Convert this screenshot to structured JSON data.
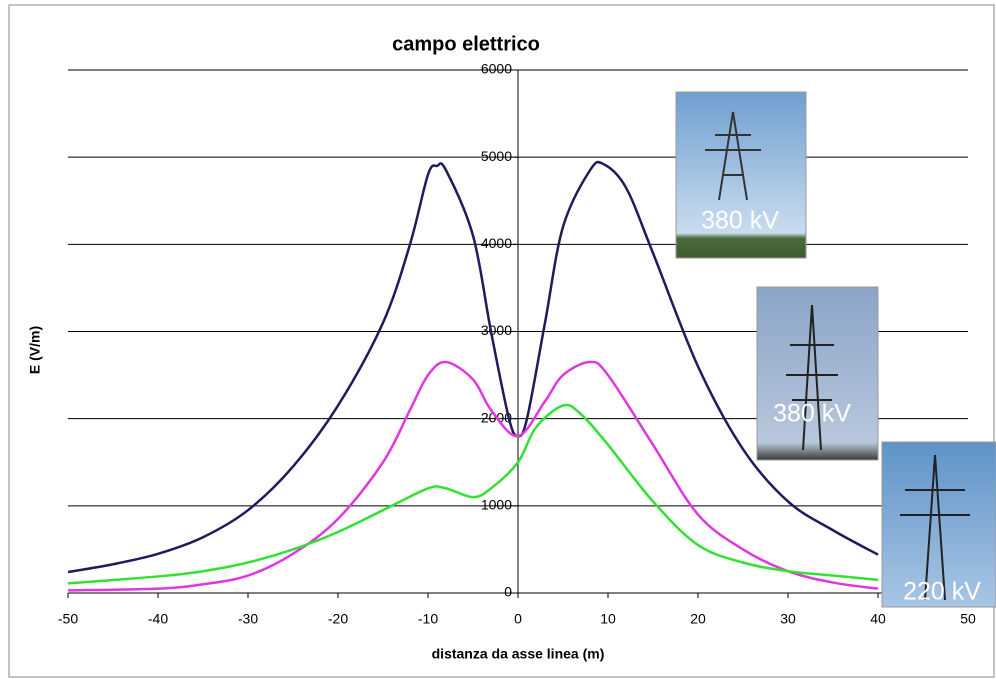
{
  "chart_data": {
    "type": "line",
    "title": "campo elettrico",
    "x_label": "distanza da asse linea (m)",
    "y_label": "E (V/m)",
    "xlim": [
      -50,
      50
    ],
    "xticks": [
      -50,
      -40,
      -30,
      -20,
      -10,
      0,
      10,
      20,
      30,
      40,
      50
    ],
    "ylim": [
      0,
      6000
    ],
    "yticks": [
      0,
      1000,
      2000,
      3000,
      4000,
      5000,
      6000
    ],
    "grid": true,
    "series": [
      {
        "color": "#1c1c5e",
        "x": [
          -50,
          -45,
          -40,
          -35,
          -30,
          -25,
          -20,
          -15,
          -12,
          -10,
          -9,
          -8,
          -5,
          -3,
          -1,
          0,
          1,
          3,
          5,
          8,
          9.5,
          12,
          15,
          20,
          25,
          30,
          35,
          40
        ],
        "values": [
          240,
          330,
          450,
          640,
          950,
          1450,
          2150,
          3100,
          4000,
          4800,
          4900,
          4850,
          4100,
          3000,
          2000,
          1800,
          2000,
          3100,
          4200,
          4850,
          4920,
          4650,
          3900,
          2600,
          1650,
          1050,
          720,
          440
        ]
      },
      {
        "color": "#e038e0",
        "x": [
          -50,
          -40,
          -35,
          -30,
          -25,
          -20,
          -15,
          -12,
          -10,
          -8,
          -5,
          -3,
          0,
          3,
          5,
          8,
          10,
          15,
          20,
          25,
          30,
          35,
          40
        ],
        "values": [
          30,
          50,
          100,
          200,
          450,
          850,
          1500,
          2100,
          2500,
          2650,
          2450,
          2100,
          1800,
          2200,
          2500,
          2650,
          2500,
          1700,
          900,
          500,
          250,
          120,
          50
        ]
      },
      {
        "color": "#33e033",
        "x": [
          -50,
          -40,
          -35,
          -30,
          -25,
          -20,
          -15,
          -10,
          -8,
          -5,
          -3,
          0,
          2,
          5,
          7,
          10,
          15,
          20,
          25,
          30,
          35,
          40
        ],
        "values": [
          110,
          190,
          250,
          350,
          500,
          700,
          950,
          1200,
          1200,
          1100,
          1200,
          1500,
          1900,
          2150,
          2050,
          1700,
          1050,
          550,
          350,
          250,
          200,
          150
        ]
      }
    ],
    "annotations": [
      "380 kV",
      "380 kV",
      "220 kV"
    ]
  }
}
